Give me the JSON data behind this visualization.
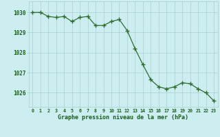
{
  "hours": [
    0,
    1,
    2,
    3,
    4,
    5,
    6,
    7,
    8,
    9,
    10,
    11,
    12,
    13,
    14,
    15,
    16,
    17,
    18,
    19,
    20,
    21,
    22,
    23
  ],
  "pressure": [
    1030.0,
    1030.0,
    1029.8,
    1029.75,
    1029.8,
    1029.55,
    1029.75,
    1029.8,
    1029.35,
    1029.35,
    1029.55,
    1029.65,
    1029.1,
    1028.2,
    1027.4,
    1026.65,
    1026.3,
    1026.2,
    1026.3,
    1026.5,
    1026.45,
    1026.2,
    1026.0,
    1025.6
  ],
  "line_color": "#2d6a2d",
  "marker_color": "#2d6a2d",
  "bg_color": "#cceef0",
  "grid_color": "#aacece",
  "xlabel": "Graphe pression niveau de la mer (hPa)",
  "xlabel_color": "#1a5c1a",
  "tick_color": "#1a5c1a",
  "ylim_min": 1025.3,
  "ylim_max": 1030.55,
  "yticks": [
    1026,
    1027,
    1028,
    1029,
    1030
  ],
  "xticks": [
    0,
    1,
    2,
    3,
    4,
    5,
    6,
    7,
    8,
    9,
    10,
    11,
    12,
    13,
    14,
    15,
    16,
    17,
    18,
    19,
    20,
    21,
    22,
    23
  ]
}
